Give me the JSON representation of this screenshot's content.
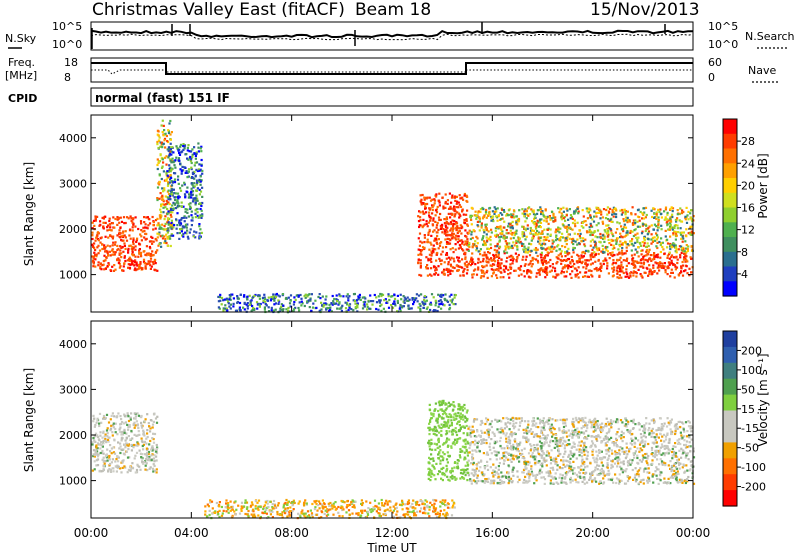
{
  "header": {
    "site": "Christmas Valley East (fitACF)",
    "beam": "Beam 18",
    "date": "15/Nov/2013"
  },
  "param_panels": {
    "nsky_label": "N.Sky",
    "nsky_ticks": [
      "10^5",
      "10^0"
    ],
    "nsearch_label": "N.Search",
    "nsearch_ticks": [
      "10^5",
      "10^0"
    ],
    "freq_label": [
      "Freq.",
      "[MHz]"
    ],
    "freq_ticks": [
      "18",
      "8"
    ],
    "nave_label": "Nave",
    "nave_ticks": [
      "60",
      "0"
    ],
    "cpid_label": "CPID",
    "cpid_value": "normal (fast) 151 IF"
  },
  "chart_data": [
    {
      "type": "heatmap",
      "name": "power",
      "ylabel": "Slant Range [km]",
      "yticks": [
        "1000",
        "2000",
        "3000",
        "4000"
      ],
      "ylim": [
        180,
        4500
      ],
      "xlim_hours": [
        0,
        24
      ],
      "colorbar": {
        "label": "Power [dB]",
        "ticks": [
          "4",
          "8",
          "12",
          "16",
          "20",
          "24",
          "28"
        ],
        "colors": [
          "#0000ff",
          "#1f3fbf",
          "#2a6f8f",
          "#3f8f5f",
          "#4fb04f",
          "#8fcf2f",
          "#cfdf1f",
          "#ffcf00",
          "#ffa000",
          "#ff7000",
          "#ff3c00",
          "#ff0000"
        ]
      },
      "echo_regions": [
        {
          "t": [
            0.0,
            2.6
          ],
          "r": [
            1100,
            2300
          ],
          "level": "high"
        },
        {
          "t": [
            2.6,
            3.2
          ],
          "r": [
            1600,
            4400
          ],
          "level": "mixed"
        },
        {
          "t": [
            3.0,
            4.4
          ],
          "r": [
            1800,
            3900
          ],
          "level": "low"
        },
        {
          "t": [
            13.0,
            15.0
          ],
          "r": [
            1000,
            2800
          ],
          "level": "high"
        },
        {
          "t": [
            15.0,
            24.0
          ],
          "r": [
            950,
            1500
          ],
          "level": "high"
        },
        {
          "t": [
            15.0,
            24.0
          ],
          "r": [
            1500,
            2500
          ],
          "level": "mixed"
        },
        {
          "t": [
            5.0,
            14.5
          ],
          "r": [
            200,
            600
          ],
          "level": "low"
        }
      ]
    },
    {
      "type": "heatmap",
      "name": "velocity",
      "ylabel": "Slant Range [km]",
      "yticks": [
        "1000",
        "2000",
        "3000",
        "4000"
      ],
      "ylim": [
        180,
        4500
      ],
      "xlim_hours": [
        0,
        24
      ],
      "xticks": [
        "00:00",
        "04:00",
        "08:00",
        "12:00",
        "16:00",
        "20:00",
        "00:00"
      ],
      "xlabel": "Time UT",
      "colorbar": {
        "label": "Velocity [m s⁻¹]",
        "ticks": [
          "200",
          "100",
          "50",
          "15",
          "-15",
          "-50",
          "-100",
          "-200"
        ],
        "colors": [
          "#1f3f9f",
          "#2f5faf",
          "#3f7f7f",
          "#4fa04f",
          "#7fcf3f",
          "#c8c8c0",
          "#c8c8c0",
          "#f0a000",
          "#ff7000",
          "#ff3c00",
          "#ff0000"
        ]
      },
      "echo_regions": [
        {
          "t": [
            0.0,
            2.6
          ],
          "r": [
            1200,
            2500
          ],
          "color": "gray"
        },
        {
          "t": [
            13.4,
            15.0
          ],
          "r": [
            1000,
            2800
          ],
          "color": "green"
        },
        {
          "t": [
            15.0,
            24.0
          ],
          "r": [
            950,
            2400
          ],
          "color": "gray"
        },
        {
          "t": [
            4.5,
            14.5
          ],
          "r": [
            200,
            600
          ],
          "color": "orange"
        }
      ]
    }
  ]
}
